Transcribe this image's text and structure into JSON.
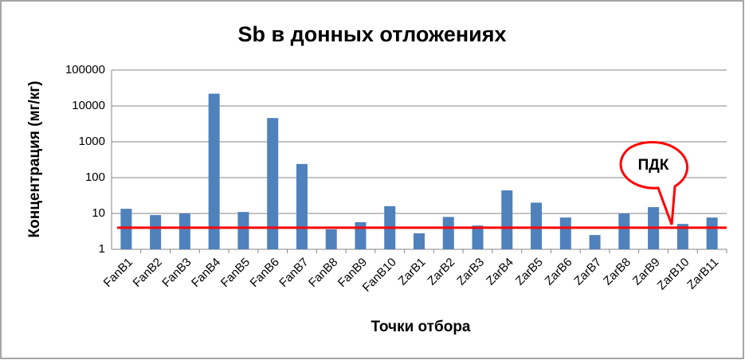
{
  "chart_data": {
    "type": "bar",
    "title": "Sb в донных отложениях",
    "x_label": "Точки отбора",
    "y_label": "Концентрация (мг/кг)",
    "categories": [
      "FanB1",
      "FanB2",
      "FanB3",
      "FanB4",
      "FanB5",
      "FanB6",
      "FanB7",
      "FanB8",
      "FanB9",
      "FanB10",
      "ZarB1",
      "ZarB2",
      "ZarB3",
      "ZarB4",
      "ZarB5",
      "ZarB6",
      "ZarB7",
      "ZarB8",
      "ZarB9",
      "ZarB10",
      "ZarB11"
    ],
    "values": [
      13.5,
      9,
      10,
      22000,
      11,
      4600,
      240,
      3.6,
      5.7,
      16,
      2.8,
      8,
      4.6,
      44,
      20,
      7.7,
      2.5,
      10,
      15,
      5.1,
      7.7
    ],
    "color": "#4f81bd",
    "ylim": [
      1,
      100000
    ],
    "yticks": [
      1,
      10,
      100,
      1000,
      10000,
      100000
    ],
    "log_y": true,
    "grid": true,
    "reference_line": {
      "label": "ПДК",
      "value": 4,
      "color": "#ff0000"
    }
  }
}
